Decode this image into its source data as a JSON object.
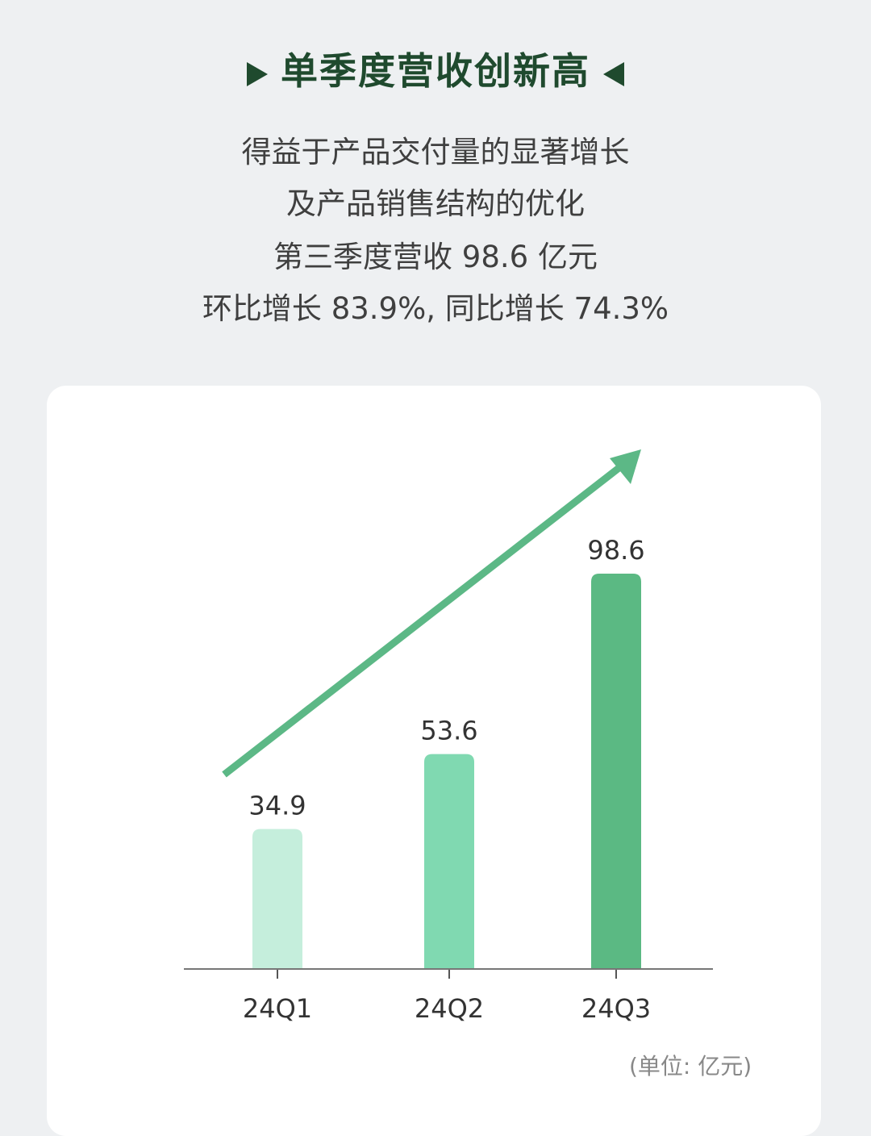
{
  "header": {
    "title": "单季度营收创新高",
    "lines": [
      "得益于产品交付量的显著增长",
      "及产品销售结构的优化",
      "第三季度营收 98.6 亿元",
      "环比增长 83.9%, 同比增长 74.3%"
    ]
  },
  "chart_data": {
    "type": "bar",
    "categories": [
      "24Q1",
      "24Q2",
      "24Q3"
    ],
    "values": [
      34.9,
      53.6,
      98.6
    ],
    "data_labels": [
      "34.9",
      "53.6",
      "98.6"
    ],
    "unit_label": "(单位: 亿元)",
    "bar_colors": [
      "#c5eedc",
      "#80d9b1",
      "#5bb983"
    ],
    "trend_arrow_color": "#5cb886",
    "ylim": [
      0,
      100
    ],
    "grid": false
  },
  "colors": {
    "title": "#1f4a2e",
    "background": "#eef0f2"
  }
}
